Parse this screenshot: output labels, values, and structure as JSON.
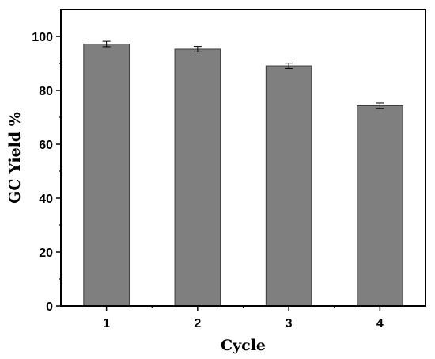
{
  "chart_data": {
    "type": "bar",
    "title": "",
    "xlabel": "Cycle",
    "ylabel": "GC Yield %",
    "categories": [
      "1",
      "2",
      "3",
      "4"
    ],
    "values": [
      97.2,
      95.3,
      89.1,
      74.3
    ],
    "errors": [
      1.0,
      1.0,
      1.0,
      1.0
    ],
    "ylim": [
      0,
      110
    ],
    "yticks": [
      0,
      20,
      40,
      60,
      80,
      100
    ],
    "grid": false,
    "legend": "none",
    "bar_color": "#7f7f7f",
    "bar_edge_color": "#3a3a3a"
  }
}
